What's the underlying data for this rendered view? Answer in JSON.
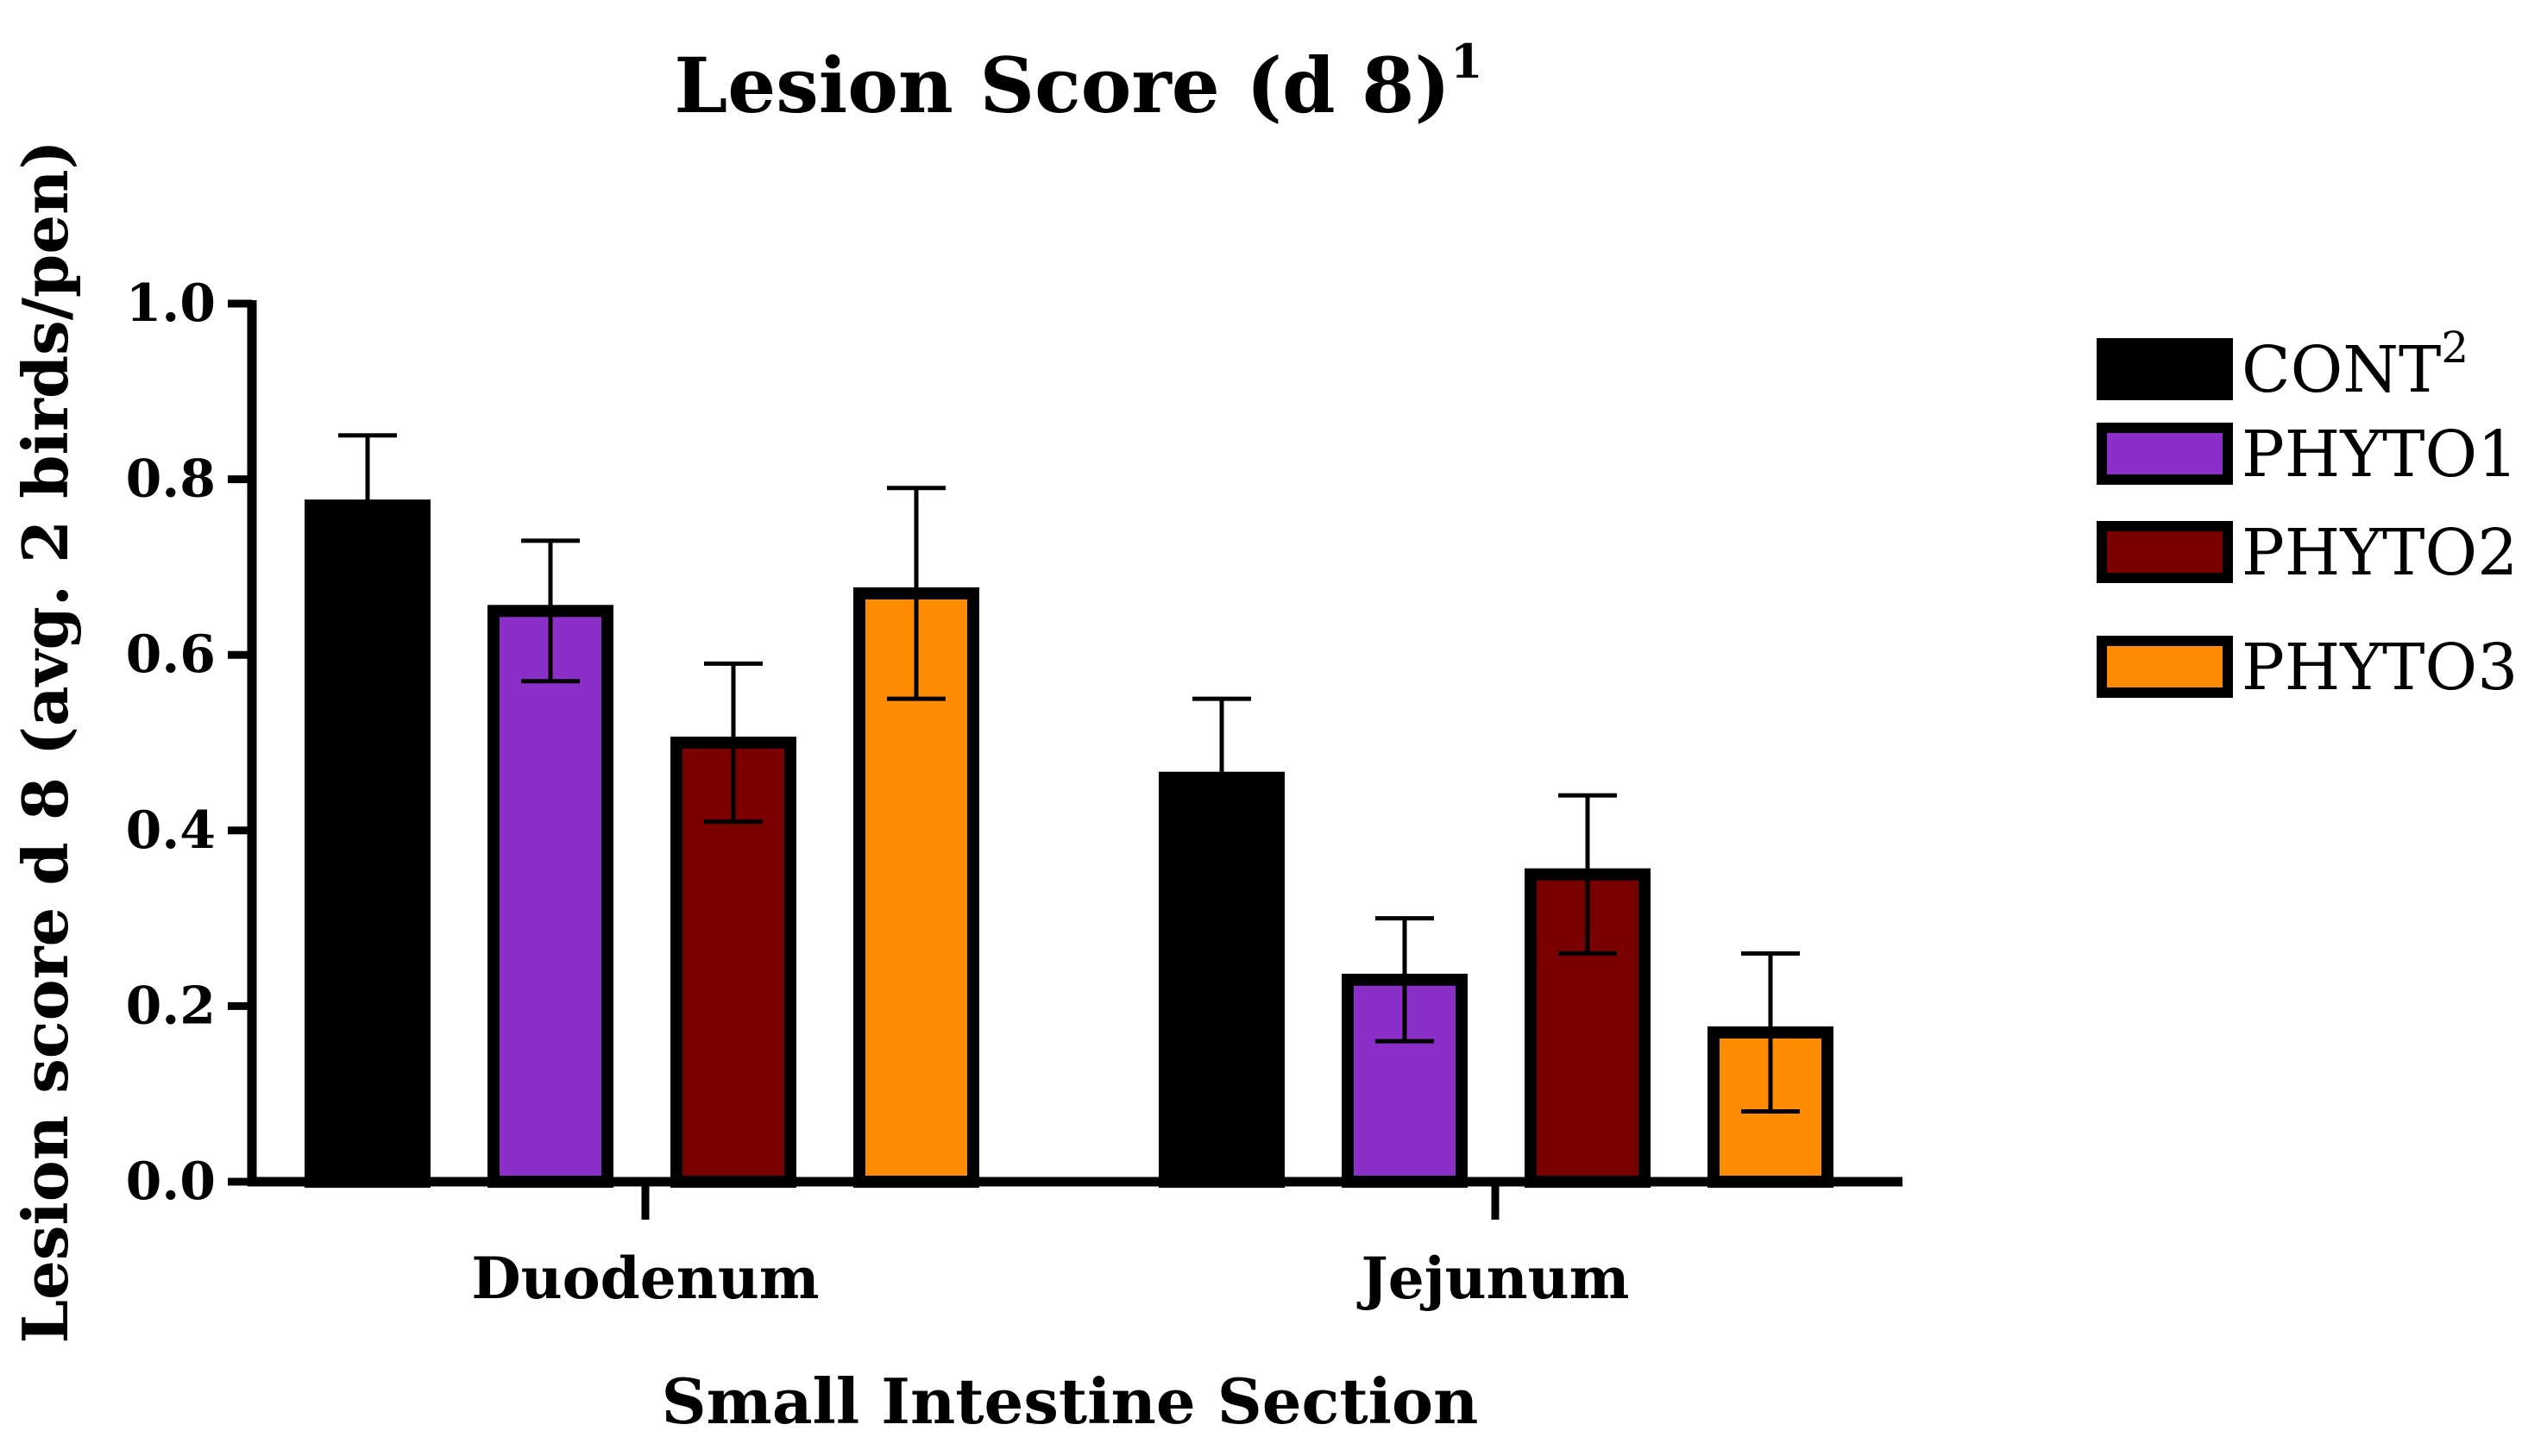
{
  "chart_data": {
    "type": "bar",
    "title": "Lesion Score (d 8)",
    "title_superscript": "1",
    "xlabel": "Small Intestine Section",
    "ylabel": "Lesion score d 8 (avg. 2 birds/pen)",
    "ylim": [
      0,
      1.0
    ],
    "yticks": [
      "0.0",
      "0.2",
      "0.4",
      "0.6",
      "0.8",
      "1.0"
    ],
    "categories": [
      "Duodenum",
      "Jejunum"
    ],
    "series": [
      {
        "name": "CONT",
        "superscript": "2",
        "color": "#000000",
        "values": [
          0.77,
          0.46
        ],
        "errors": [
          0.08,
          0.09
        ]
      },
      {
        "name": "PHYTO1",
        "superscript": "",
        "color": "#8B2FC9",
        "values": [
          0.65,
          0.23
        ],
        "errors": [
          0.08,
          0.07
        ]
      },
      {
        "name": "PHYTO2",
        "superscript": "",
        "color": "#7A0000",
        "values": [
          0.5,
          0.35
        ],
        "errors": [
          0.09,
          0.09
        ]
      },
      {
        "name": "PHYTO3",
        "superscript": "",
        "color": "#FF8C00",
        "values": [
          0.67,
          0.17
        ],
        "errors": [
          0.12,
          0.09
        ]
      }
    ],
    "legend_position": "right",
    "grid": false
  }
}
